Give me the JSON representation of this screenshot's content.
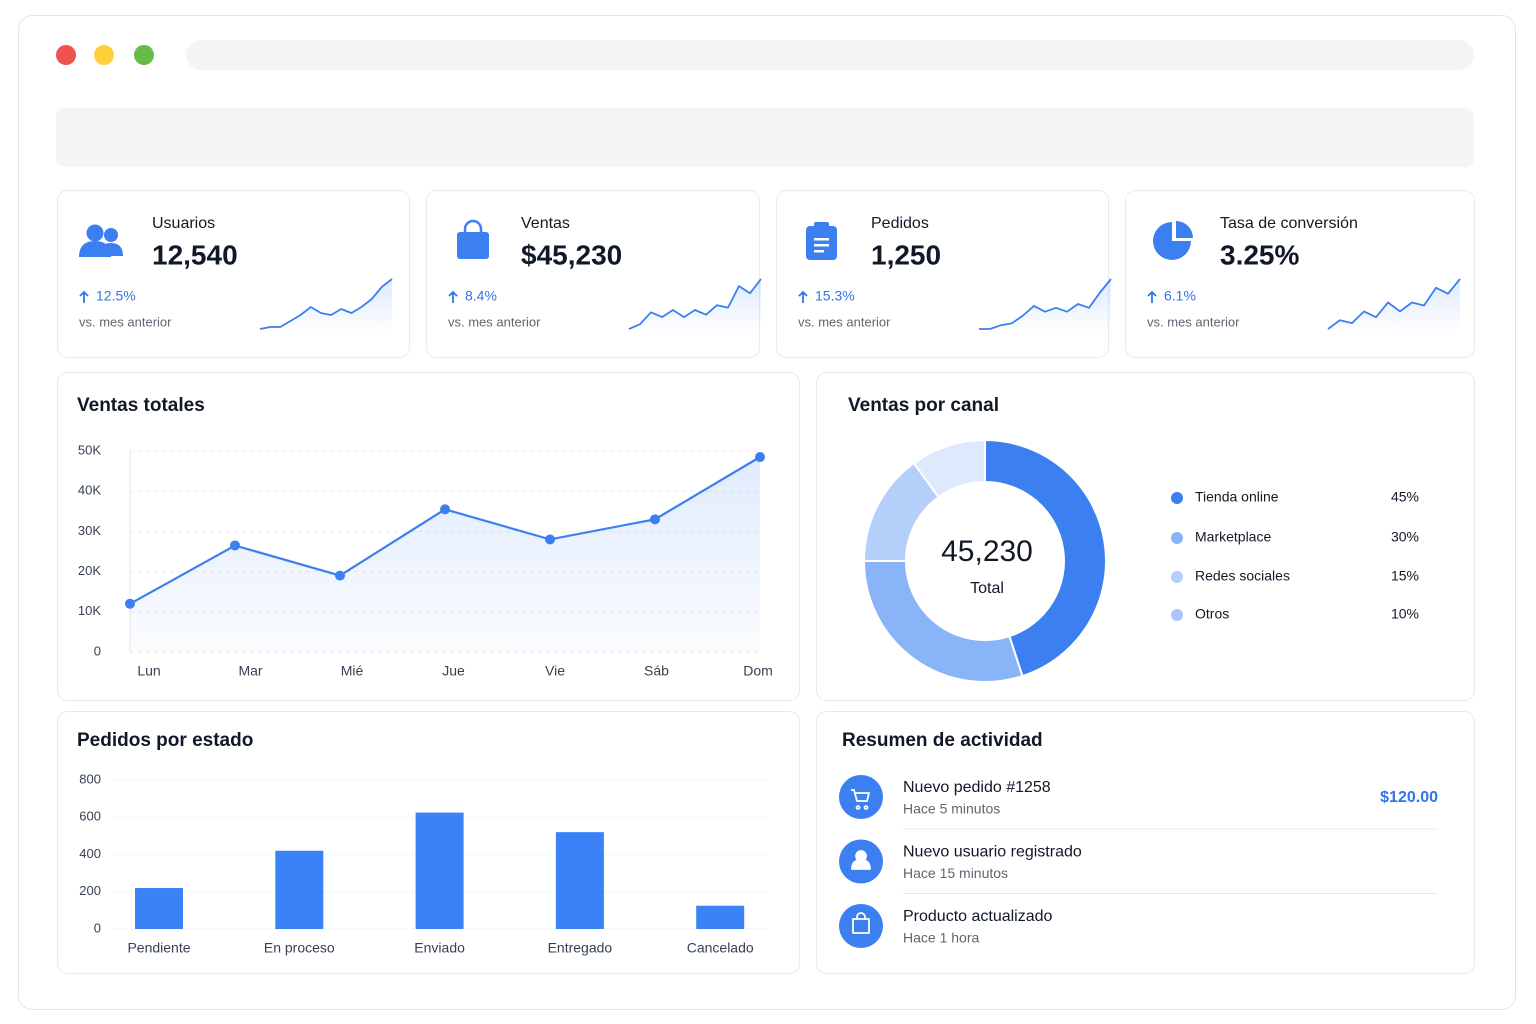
{
  "kpis": [
    {
      "label": "Usuarios",
      "value": "12,540",
      "change": "12.5%",
      "note": "vs. mes anterior",
      "trend": [
        1,
        1.5,
        1.5,
        3,
        4.5,
        6.5,
        5,
        4.5,
        6,
        5,
        6.5,
        8.5,
        11.5,
        13.5
      ]
    },
    {
      "label": "Ventas",
      "value": "$45,230",
      "change": "8.4%",
      "note": "vs. mes anterior",
      "trend": [
        1,
        2,
        4.5,
        3.5,
        5,
        3.5,
        5,
        4,
        6,
        5.5,
        10,
        8.5,
        11.5
      ]
    },
    {
      "label": "Pedidos",
      "value": "1,250",
      "change": "15.3%",
      "note": "vs. mes anterior",
      "trend": [
        1,
        1,
        2,
        2.5,
        4.5,
        7,
        5.5,
        6.5,
        5.5,
        7.5,
        6.5,
        10.5,
        14
      ]
    },
    {
      "label": "Tasa de conversión",
      "value": "3.25%",
      "change": "6.1%",
      "note": "vs. mes anterior",
      "trend": [
        1,
        2.5,
        2,
        4,
        3,
        5.5,
        4,
        5.5,
        5,
        8,
        7,
        9.5
      ]
    }
  ],
  "chart_data": [
    {
      "type": "line",
      "title": "Ventas totales",
      "categories": [
        "Lun",
        "Mar",
        "Mié",
        "Jue",
        "Vie",
        "Sáb",
        "Dom"
      ],
      "values": [
        12000,
        26500,
        19000,
        35500,
        28000,
        33000,
        48500
      ],
      "color": "#3b7ff0",
      "ylim": [
        0,
        50000
      ],
      "yticks": [
        0,
        {
          "value": 10000,
          "label": "10K"
        },
        {
          "value": 20000,
          "label": "20K"
        },
        {
          "value": 30000,
          "label": "30K"
        },
        {
          "value": 40000,
          "label": "40K"
        },
        {
          "value": 50000,
          "label": "50K"
        }
      ],
      "grid": true
    },
    {
      "type": "pie",
      "title": "Ventas por canal",
      "categories": [
        "Tienda online",
        "Marketplace",
        "Redes sociales",
        "Otros"
      ],
      "values": [
        45,
        30,
        15,
        10
      ],
      "value_labels": [
        "45%",
        "30%",
        "15%",
        "10%"
      ],
      "colors": [
        "#3b7ff0",
        "#8ab4f8",
        "#b5cffb",
        "#dde9fd"
      ],
      "center_value": "45,230",
      "center_label": "Total"
    },
    {
      "type": "bar",
      "title": "Pedidos por estado",
      "categories": [
        "Pendiente",
        "En proceso",
        "Enviado",
        "Entregado",
        "Cancelado"
      ],
      "values": [
        220,
        420,
        625,
        520,
        125
      ],
      "color": "#3b82f6",
      "ylim": [
        0,
        800
      ],
      "yticks": [
        0,
        200,
        400,
        600,
        800
      ],
      "grid": true
    }
  ],
  "activity": {
    "title": "Resumen de actividad",
    "items": [
      {
        "title": "Nuevo pedido #1258",
        "time": "Hace 5 minutos",
        "amount": "$120.00"
      },
      {
        "title": "Nuevo usuario registrado",
        "time": "Hace 15 minutos"
      },
      {
        "title": "Producto actualizado",
        "time": "Hace 1 hora"
      }
    ]
  }
}
